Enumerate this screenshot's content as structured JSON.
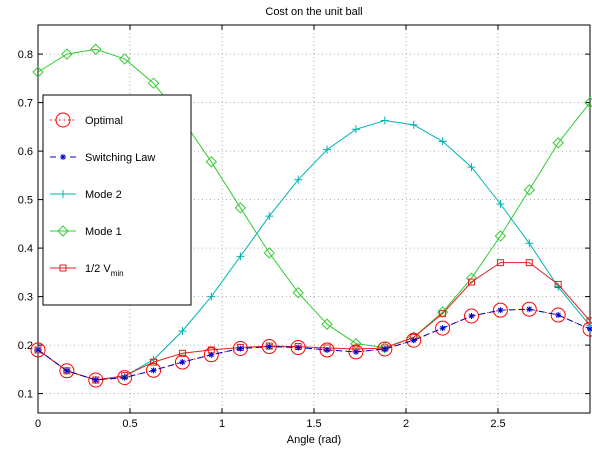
{
  "chart_data": {
    "type": "line",
    "title": "Cost on the unit ball",
    "xlabel": "Angle (rad)",
    "ylabel": "",
    "xlim": [
      0,
      3.0
    ],
    "ylim": [
      0.06,
      0.86
    ],
    "xticks": [
      0,
      0.5,
      1,
      1.5,
      2,
      2.5
    ],
    "xtick_labels": [
      "0",
      "0.5",
      "1",
      "1.5",
      "2",
      "2.5"
    ],
    "yticks": [
      0.1,
      0.2,
      0.3,
      0.4,
      0.5,
      0.6,
      0.7,
      0.8
    ],
    "ytick_labels": [
      "0.1",
      "0.2",
      "0.3",
      "0.4",
      "0.5",
      "0.6",
      "0.7",
      "0.8"
    ],
    "grid": true,
    "legend_position": "left",
    "x": [
      0,
      0.157,
      0.314,
      0.471,
      0.628,
      0.785,
      0.942,
      1.1,
      1.257,
      1.414,
      1.571,
      1.728,
      1.885,
      2.042,
      2.199,
      2.356,
      2.513,
      2.67,
      2.827,
      3.0
    ],
    "series": [
      {
        "name": "Optimal",
        "color": "#ff0000",
        "marker": "circle",
        "line": "dotted",
        "values": [
          0.19,
          0.147,
          0.128,
          0.133,
          0.148,
          0.165,
          0.18,
          0.193,
          0.197,
          0.195,
          0.19,
          0.186,
          0.192,
          0.21,
          0.235,
          0.26,
          0.272,
          0.274,
          0.262,
          0.233
        ]
      },
      {
        "name": "Switching Law",
        "color": "#0000cc",
        "marker": "star",
        "line": "dashed",
        "values": [
          0.19,
          0.147,
          0.128,
          0.133,
          0.148,
          0.165,
          0.18,
          0.193,
          0.197,
          0.195,
          0.19,
          0.186,
          0.192,
          0.21,
          0.235,
          0.26,
          0.272,
          0.274,
          0.262,
          0.233
        ]
      },
      {
        "name": "Mode 2",
        "color": "#00b3b3",
        "marker": "plus",
        "line": "solid",
        "values": [
          0.19,
          0.147,
          0.128,
          0.136,
          0.17,
          0.229,
          0.3,
          0.383,
          0.466,
          0.541,
          0.603,
          0.645,
          0.663,
          0.654,
          0.62,
          0.567,
          0.491,
          0.41,
          0.32,
          0.24
        ]
      },
      {
        "name": "Mode 1",
        "color": "#33cc33",
        "marker": "diamond",
        "line": "solid",
        "values": [
          0.763,
          0.8,
          0.81,
          0.79,
          0.74,
          0.665,
          0.578,
          0.483,
          0.39,
          0.308,
          0.243,
          0.203,
          0.195,
          0.216,
          0.268,
          0.338,
          0.425,
          0.52,
          0.617,
          0.7
        ]
      },
      {
        "name": "1/2 V_min",
        "color": "#dd2222",
        "marker": "square",
        "line": "solid",
        "values": [
          0.19,
          0.147,
          0.128,
          0.137,
          0.165,
          0.183,
          0.19,
          0.195,
          0.198,
          0.197,
          0.194,
          0.192,
          0.194,
          0.216,
          0.265,
          0.33,
          0.37,
          0.37,
          0.325,
          0.25
        ]
      }
    ],
    "legend": {
      "entries": [
        {
          "label": "Optimal",
          "sub": ""
        },
        {
          "label": "Switching Law",
          "sub": ""
        },
        {
          "label": "Mode 2",
          "sub": ""
        },
        {
          "label": "Mode 1",
          "sub": ""
        },
        {
          "label": "1/2 V",
          "sub": "min"
        }
      ]
    }
  }
}
